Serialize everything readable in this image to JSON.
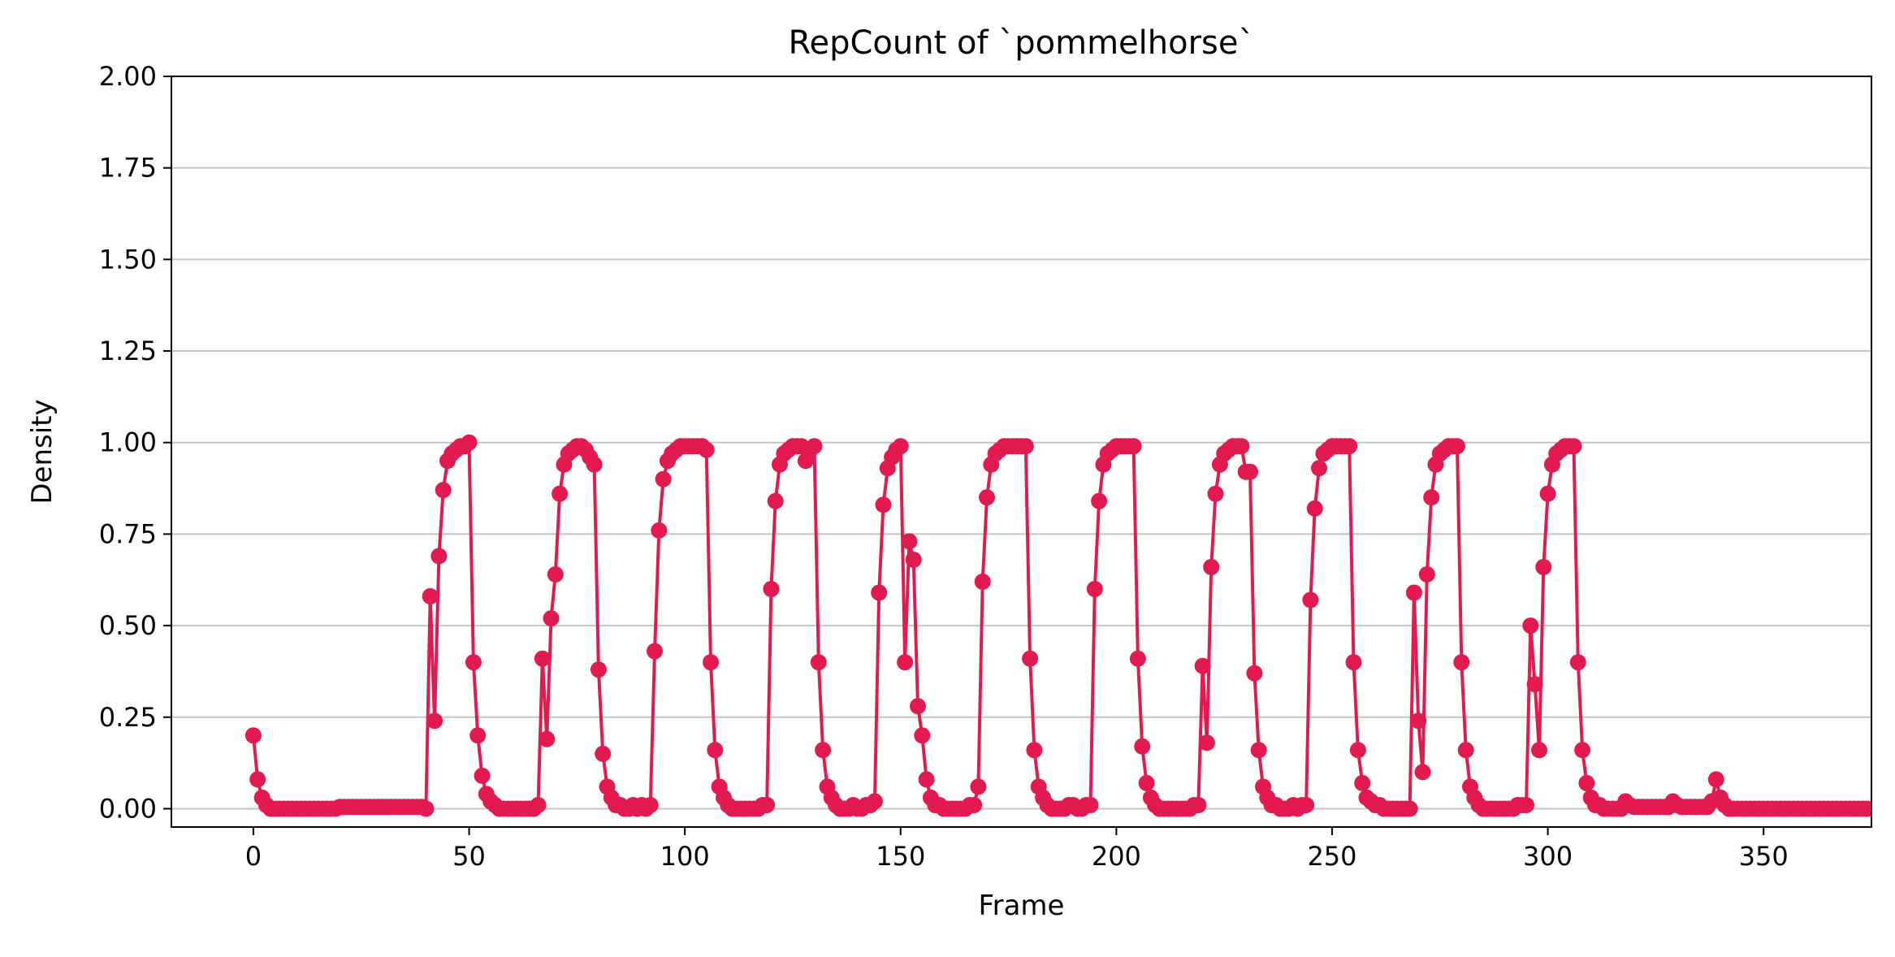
{
  "chart_data": {
    "type": "line",
    "title": "RepCount of `pommelhorse`",
    "xlabel": "Frame",
    "ylabel": "Density",
    "xlim": [
      -19,
      375
    ],
    "ylim": [
      -0.05,
      2.0
    ],
    "xticks": [
      "0",
      "50",
      "100",
      "150",
      "200",
      "250",
      "300",
      "350"
    ],
    "yticks": [
      "0.00",
      "0.25",
      "0.50",
      "0.75",
      "1.00",
      "1.25",
      "1.50",
      "1.75",
      "2.00"
    ],
    "grid": "horizontal",
    "color": "#e31a4f",
    "marker": "circle",
    "series": [
      {
        "x_start": 0,
        "x_step": 1,
        "values": [
          0.2,
          0.08,
          0.03,
          0.01,
          0.0,
          0.0,
          0.0,
          0.0,
          0.0,
          0.0,
          0.0,
          0.0,
          0.0,
          0.0,
          0.0,
          0.0,
          0.0,
          0.0,
          0.0,
          0.0,
          0.005,
          0.005,
          0.005,
          0.005,
          0.005,
          0.005,
          0.005,
          0.005,
          0.005,
          0.005,
          0.005,
          0.005,
          0.005,
          0.005,
          0.005,
          0.005,
          0.005,
          0.005,
          0.005,
          0.005,
          0.0,
          0.58,
          0.24,
          0.69,
          0.87,
          0.95,
          0.97,
          0.98,
          0.99,
          0.99,
          1.0,
          0.4,
          0.2,
          0.09,
          0.04,
          0.02,
          0.01,
          0.0,
          0.0,
          0.0,
          0.0,
          0.0,
          0.0,
          0.0,
          0.0,
          0.0,
          0.01,
          0.41,
          0.19,
          0.52,
          0.64,
          0.86,
          0.94,
          0.97,
          0.98,
          0.99,
          0.99,
          0.98,
          0.96,
          0.94,
          0.38,
          0.15,
          0.06,
          0.03,
          0.01,
          0.01,
          0.0,
          0.0,
          0.01,
          0.0,
          0.01,
          0.0,
          0.01,
          0.43,
          0.76,
          0.9,
          0.95,
          0.97,
          0.98,
          0.99,
          0.99,
          0.99,
          0.99,
          0.99,
          0.99,
          0.98,
          0.4,
          0.16,
          0.06,
          0.03,
          0.01,
          0.0,
          0.0,
          0.0,
          0.0,
          0.0,
          0.0,
          0.0,
          0.01,
          0.01,
          0.6,
          0.84,
          0.94,
          0.97,
          0.98,
          0.99,
          0.99,
          0.99,
          0.95,
          0.98,
          0.99,
          0.4,
          0.16,
          0.06,
          0.03,
          0.01,
          0.0,
          0.0,
          0.0,
          0.01,
          0.0,
          0.0,
          0.01,
          0.01,
          0.02,
          0.59,
          0.83,
          0.93,
          0.96,
          0.98,
          0.99,
          0.4,
          0.73,
          0.68,
          0.28,
          0.2,
          0.08,
          0.03,
          0.01,
          0.01,
          0.0,
          0.0,
          0.0,
          0.0,
          0.0,
          0.0,
          0.01,
          0.01,
          0.06,
          0.62,
          0.85,
          0.94,
          0.97,
          0.98,
          0.99,
          0.99,
          0.99,
          0.99,
          0.99,
          0.99,
          0.41,
          0.16,
          0.06,
          0.03,
          0.01,
          0.0,
          0.0,
          0.0,
          0.0,
          0.01,
          0.01,
          0.0,
          0.0,
          0.01,
          0.01,
          0.6,
          0.84,
          0.94,
          0.97,
          0.98,
          0.99,
          0.99,
          0.99,
          0.99,
          0.99,
          0.41,
          0.17,
          0.07,
          0.03,
          0.01,
          0.0,
          0.0,
          0.0,
          0.0,
          0.0,
          0.0,
          0.0,
          0.0,
          0.01,
          0.01,
          0.39,
          0.18,
          0.66,
          0.86,
          0.94,
          0.97,
          0.98,
          0.99,
          0.99,
          0.99,
          0.92,
          0.92,
          0.37,
          0.16,
          0.06,
          0.03,
          0.01,
          0.01,
          0.0,
          0.0,
          0.0,
          0.01,
          0.0,
          0.01,
          0.01,
          0.57,
          0.82,
          0.93,
          0.97,
          0.98,
          0.99,
          0.99,
          0.99,
          0.99,
          0.99,
          0.4,
          0.16,
          0.07,
          0.03,
          0.02,
          0.01,
          0.01,
          0.0,
          0.0,
          0.0,
          0.0,
          0.0,
          0.0,
          0.0,
          0.59,
          0.24,
          0.1,
          0.64,
          0.85,
          0.94,
          0.97,
          0.98,
          0.99,
          0.99,
          0.99,
          0.4,
          0.16,
          0.06,
          0.03,
          0.01,
          0.0,
          0.0,
          0.0,
          0.0,
          0.0,
          0.0,
          0.0,
          0.0,
          0.01,
          0.01,
          0.01,
          0.5,
          0.34,
          0.16,
          0.66,
          0.86,
          0.94,
          0.97,
          0.98,
          0.99,
          0.99,
          0.99,
          0.4,
          0.16,
          0.07,
          0.03,
          0.01,
          0.01,
          0.0,
          0.0,
          0.0,
          0.0,
          0.0,
          0.02,
          0.01,
          0.005,
          0.005,
          0.005,
          0.005,
          0.005,
          0.005,
          0.005,
          0.005,
          0.005,
          0.02,
          0.01,
          0.005,
          0.005,
          0.005,
          0.005,
          0.005,
          0.005,
          0.005,
          0.02,
          0.08,
          0.03,
          0.01,
          0.0,
          0.0,
          0.0,
          0.0,
          0.0,
          0.0,
          0.0,
          0.0,
          0.0,
          0.0,
          0.0,
          0.0,
          0.0,
          0.0,
          0.0,
          0.0,
          0.0,
          0.0,
          0.0,
          0.0,
          0.0,
          0.0,
          0.0,
          0.0,
          0.0,
          0.0,
          0.0,
          0.0,
          0.0,
          0.0,
          0.0,
          0.0,
          0.0
        ]
      }
    ]
  }
}
